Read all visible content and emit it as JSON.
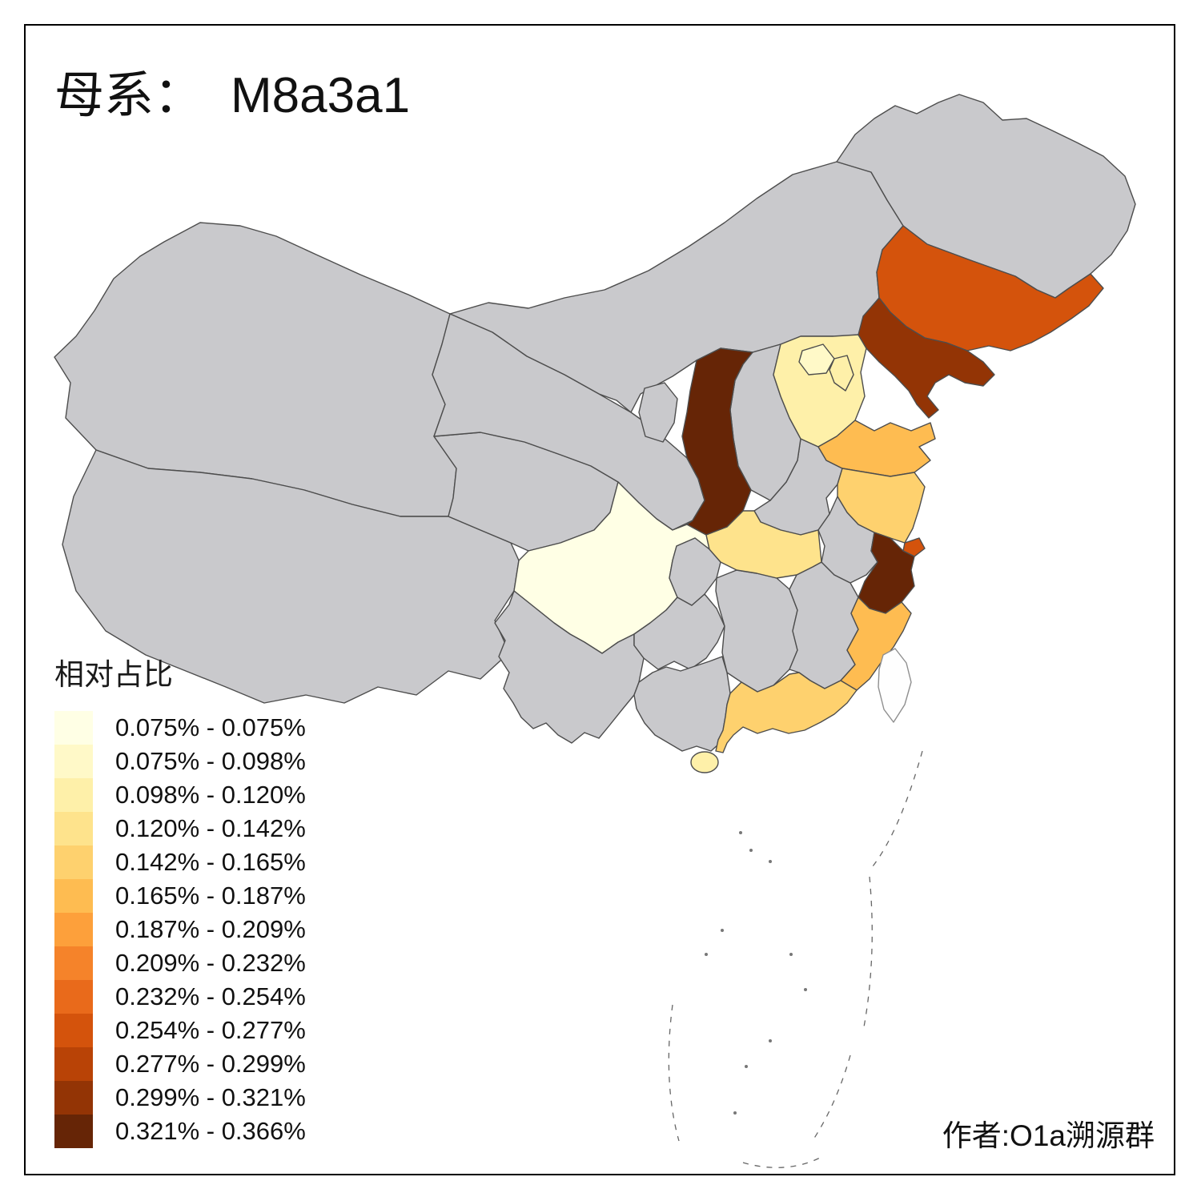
{
  "title": {
    "prefix": "母系：",
    "haplogroup": "M8a3a1"
  },
  "legend": {
    "title": "相对占比",
    "bins": [
      {
        "label": "0.075% - 0.075%",
        "color": "#FFFFE5"
      },
      {
        "label": "0.075% - 0.098%",
        "color": "#FFF9C8"
      },
      {
        "label": "0.098% - 0.120%",
        "color": "#FEF0A9"
      },
      {
        "label": "0.120% - 0.142%",
        "color": "#FEE38C"
      },
      {
        "label": "0.142% - 0.165%",
        "color": "#FED16E"
      },
      {
        "label": "0.165% - 0.187%",
        "color": "#FEBC51"
      },
      {
        "label": "0.187% - 0.209%",
        "color": "#FDA03B"
      },
      {
        "label": "0.209% - 0.232%",
        "color": "#F5832A"
      },
      {
        "label": "0.232% - 0.254%",
        "color": "#E96A1B"
      },
      {
        "label": "0.254% - 0.277%",
        "color": "#D4530C"
      },
      {
        "label": "0.277% - 0.299%",
        "color": "#B94306"
      },
      {
        "label": "0.299% - 0.321%",
        "color": "#933405"
      },
      {
        "label": "0.321% - 0.366%",
        "color": "#662506"
      }
    ]
  },
  "credit": "作者:O1a溯源群",
  "map": {
    "no_data_color": "#C9C9CC",
    "border_color": "#4D4D4D",
    "provinces": [
      {
        "id": "xinjiang",
        "bin": null
      },
      {
        "id": "tibet",
        "bin": null
      },
      {
        "id": "qinghai",
        "bin": null
      },
      {
        "id": "gansu",
        "bin": null
      },
      {
        "id": "inner-mongolia",
        "bin": null
      },
      {
        "id": "heilongjiang",
        "bin": null
      },
      {
        "id": "sichuan",
        "bin": 0
      },
      {
        "id": "yunnan",
        "bin": null
      },
      {
        "id": "guizhou",
        "bin": null
      },
      {
        "id": "chongqing",
        "bin": null
      },
      {
        "id": "hunan",
        "bin": null
      },
      {
        "id": "jiangxi",
        "bin": null
      },
      {
        "id": "henan",
        "bin": null
      },
      {
        "id": "shanxi",
        "bin": null
      },
      {
        "id": "anhui",
        "bin": null
      },
      {
        "id": "guangxi",
        "bin": null
      },
      {
        "id": "hebei",
        "bin": 2
      },
      {
        "id": "beijing",
        "bin": 1
      },
      {
        "id": "tianjin",
        "bin": 2
      },
      {
        "id": "shandong",
        "bin": 5
      },
      {
        "id": "jiangsu",
        "bin": 4
      },
      {
        "id": "hubei",
        "bin": 3
      },
      {
        "id": "shanghai",
        "bin": 9
      },
      {
        "id": "zhejiang",
        "bin": 12
      },
      {
        "id": "fujian",
        "bin": 5
      },
      {
        "id": "guangdong",
        "bin": 4
      },
      {
        "id": "hainan",
        "bin": 2
      },
      {
        "id": "jilin",
        "bin": 9
      },
      {
        "id": "liaoning",
        "bin": 11
      },
      {
        "id": "shaanxi",
        "bin": 12
      },
      {
        "id": "ningxia",
        "bin": null
      },
      {
        "id": "taiwan",
        "bin": null,
        "fill": "#FEFEFE"
      }
    ]
  }
}
